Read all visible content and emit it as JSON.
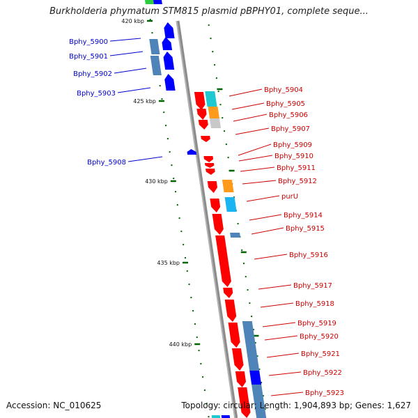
{
  "title": "Burkholderia phymatum STM815 plasmid pBPHY01, complete seque...",
  "footer": {
    "accession": "Accession: NC_010625",
    "topology": "Topology: circular; Length: 1,904,893 bp; Genes: 1,627"
  },
  "colors": {
    "backbone": "#8c8c8c",
    "forward_strand": "#0000ff",
    "reverse_strand": "#ff0000",
    "label_forward": "#0000cc",
    "label_reverse": "#cc0000",
    "tick": "#006400",
    "box_steelblue": "#4f84b8",
    "box_cyan": "#1fc9d2",
    "box_orange": "#ff9a1a",
    "box_grey": "#c8c8c8",
    "box_skyblue": "#1ab4f0",
    "box_green": "#2ecc40"
  },
  "scale_labels": [
    "420 kbp",
    "425 kbp",
    "430 kbp",
    "435 kbp",
    "440 kbp"
  ],
  "genes_left": [
    {
      "name": "Bphy_5900"
    },
    {
      "name": "Bphy_5901"
    },
    {
      "name": "Bphy_5902"
    },
    {
      "name": "Bphy_5903"
    },
    {
      "name": "Bphy_5908"
    }
  ],
  "genes_right": [
    {
      "name": "Bphy_5904"
    },
    {
      "name": "Bphy_5905"
    },
    {
      "name": "Bphy_5906"
    },
    {
      "name": "Bphy_5907"
    },
    {
      "name": "Bphy_5909"
    },
    {
      "name": "Bphy_5910"
    },
    {
      "name": "Bphy_5911"
    },
    {
      "name": "Bphy_5912"
    },
    {
      "name": "purU"
    },
    {
      "name": "Bphy_5914"
    },
    {
      "name": "Bphy_5915"
    },
    {
      "name": "Bphy_5916"
    },
    {
      "name": "Bphy_5917"
    },
    {
      "name": "Bphy_5918"
    },
    {
      "name": "Bphy_5919"
    },
    {
      "name": "Bphy_5920"
    },
    {
      "name": "Bphy_5921"
    },
    {
      "name": "Bphy_5922"
    },
    {
      "name": "Bphy_5923"
    }
  ]
}
